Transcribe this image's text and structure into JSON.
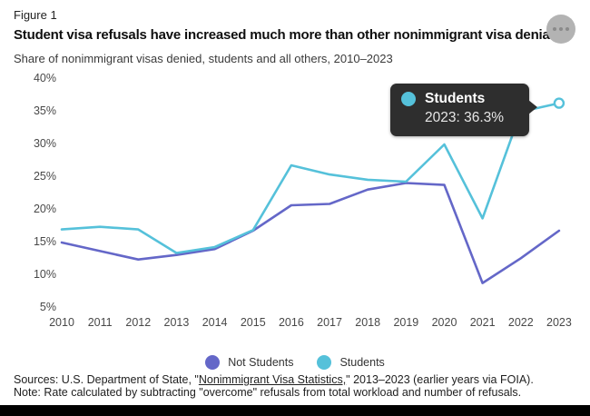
{
  "figure_label": "Figure 1",
  "title": "Student visa refusals have increased much more than other nonimmigrant visa denials",
  "subtitle": "Share of nonimmigrant visas denied, students and all others, 2010–2023",
  "menu_button": {
    "icon": "ellipsis"
  },
  "tooltip": {
    "series": "Students",
    "value_line": "2023: 36.3%",
    "bg": "#2e2e2e"
  },
  "chart_data": {
    "type": "line",
    "x": [
      2010,
      2011,
      2012,
      2013,
      2014,
      2015,
      2016,
      2017,
      2018,
      2019,
      2020,
      2021,
      2022,
      2023
    ],
    "series": [
      {
        "name": "Not Students",
        "color": "#6467c8",
        "values": [
          15.0,
          13.7,
          12.4,
          13.1,
          14.0,
          16.8,
          20.7,
          20.9,
          23.1,
          24.1,
          23.8,
          8.8,
          12.6,
          16.8
        ]
      },
      {
        "name": "Students",
        "color": "#55c1da",
        "end_marker": "open-circle",
        "values": [
          17.0,
          17.4,
          17.0,
          13.4,
          14.3,
          16.9,
          26.8,
          25.4,
          24.6,
          24.3,
          30.0,
          18.7,
          35.0,
          36.3
        ]
      }
    ],
    "title": "Student visa refusals have increased much more than other nonimmigrant visa denials",
    "xlabel": "",
    "ylabel": "Share of nonimmigrant visas denied (%)",
    "ylim": [
      5,
      40
    ],
    "yticks": [
      40,
      35,
      30,
      25,
      20,
      15,
      10,
      5
    ],
    "ytick_suffix": "%",
    "grid": false,
    "legend_position": "bottom",
    "highlight": {
      "series": "Students",
      "year": 2023,
      "value": 36.3
    }
  },
  "legend": {
    "items": [
      {
        "label": "Not Students",
        "color": "#6467c8"
      },
      {
        "label": "Students",
        "color": "#55c1da"
      }
    ]
  },
  "footer": {
    "sources_prefix": "Sources: U.S. Department of State, \"",
    "sources_link": "Nonimmigrant Visa Statistics,",
    "sources_suffix": "\" 2013–2023 (earlier years via FOIA).",
    "note": "Note: Rate calculated by subtracting \"overcome\" refusals from total workload and number of refusals."
  }
}
